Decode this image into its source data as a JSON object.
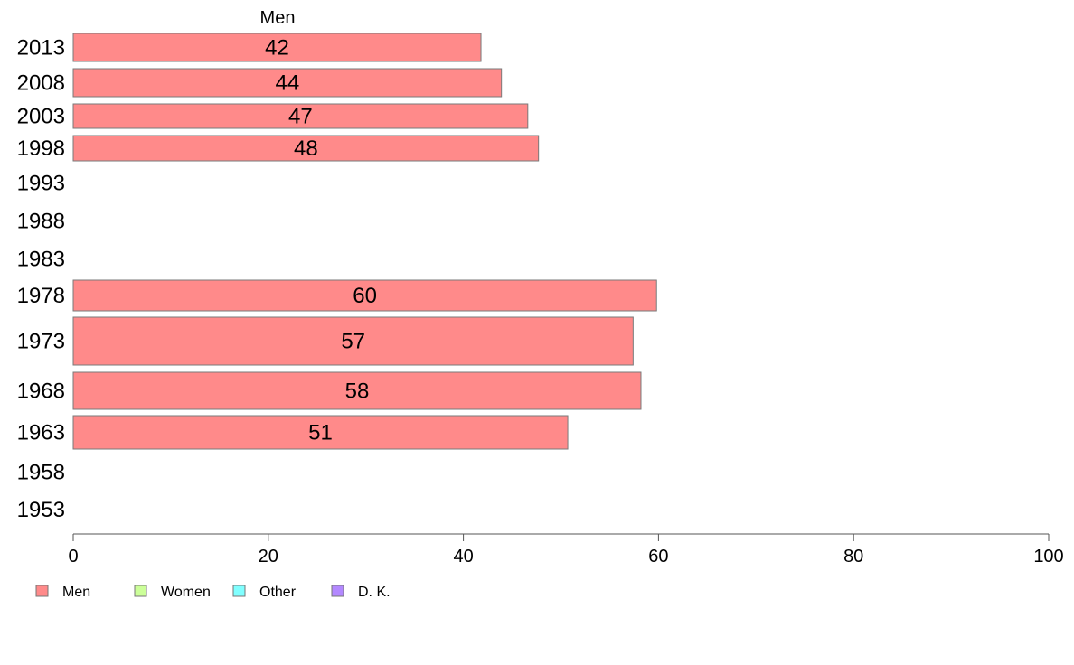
{
  "chart_data": {
    "type": "bar",
    "orientation": "horizontal",
    "title": "",
    "series_title": "Men",
    "xlabel": "",
    "ylabel": "",
    "xlim": [
      0,
      100
    ],
    "x_ticks": [
      0,
      20,
      40,
      60,
      80,
      100
    ],
    "grid": false,
    "legend_position": "bottom-left",
    "categories": [
      "2013",
      "2008",
      "2003",
      "1998",
      "1993",
      "1988",
      "1983",
      "1978",
      "1973",
      "1968",
      "1963",
      "1958",
      "1953"
    ],
    "series": [
      {
        "name": "Men",
        "color": "#ff8a8a",
        "values": [
          41.8,
          43.9,
          46.6,
          47.7,
          null,
          null,
          null,
          59.8,
          57.4,
          58.2,
          50.7,
          null,
          null
        ],
        "labels": [
          "42",
          "44",
          "47",
          "48",
          "",
          "",
          "",
          "60",
          "57",
          "58",
          "51",
          "",
          ""
        ]
      }
    ],
    "legend": [
      {
        "label": "Men",
        "color": "#ff8a8a"
      },
      {
        "label": "Women",
        "color": "#ccff99"
      },
      {
        "label": "Other",
        "color": "#80ffff"
      },
      {
        "label": "D. K.",
        "color": "#b388ff"
      }
    ]
  }
}
